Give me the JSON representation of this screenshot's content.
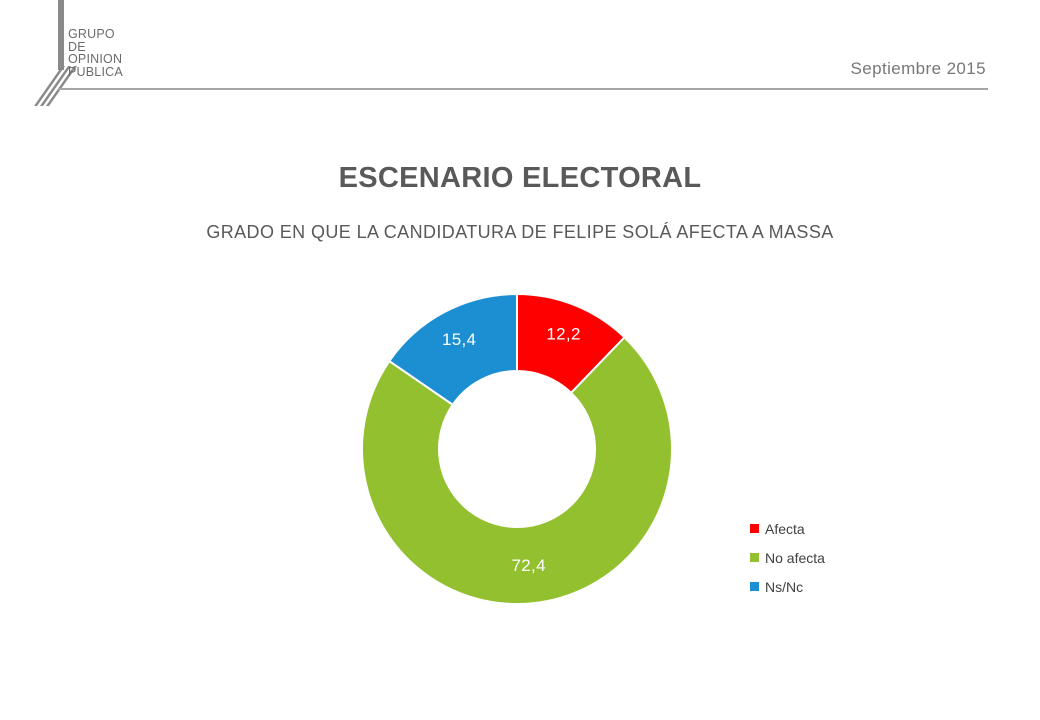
{
  "header": {
    "logo_lines": [
      "GRUPO",
      "DE",
      "OPINION",
      "PUBLICA"
    ],
    "date": "Septiembre 2015"
  },
  "title": "ESCENARIO ELECTORAL",
  "subtitle": "GRADO EN QUE LA CANDIDATURA DE FELIPE SOLÁ AFECTA A MASSA",
  "colors": {
    "afecta": "#ff0000",
    "no_afecta": "#92c02f",
    "nsnc": "#1b8fd2"
  },
  "chart_data": {
    "type": "pie",
    "donut": true,
    "title": "",
    "categories": [
      "Afecta",
      "No afecta",
      "Ns/Nc"
    ],
    "values": [
      12.2,
      72.4,
      15.4
    ],
    "labels": [
      "12,2",
      "72,4",
      "15,4"
    ],
    "colors": [
      "#ff0000",
      "#92c02f",
      "#1b8fd2"
    ],
    "legend": "right"
  }
}
